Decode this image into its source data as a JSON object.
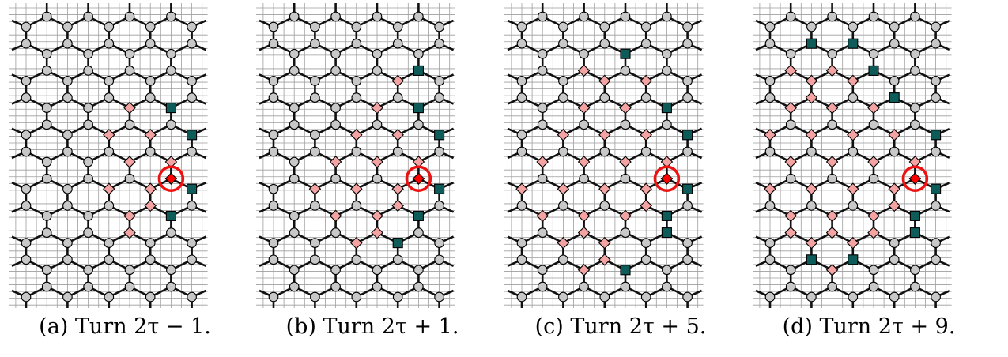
{
  "grid": {
    "cols": 8,
    "rows": 10
  },
  "colors": {
    "gridline": "#9e9e9e",
    "edge": "#111111",
    "vertex": "#c8c8c8",
    "marked": "#f4a3a3",
    "robber": "#ff0000",
    "cop": "#0d5c5a",
    "circle": "#ee1111"
  },
  "robber": {
    "i": 7,
    "j": 6
  },
  "panels": [
    {
      "caption": "(a) Turn 2τ − 1.",
      "cops": [
        [
          7,
          3
        ],
        [
          8,
          4
        ],
        [
          8,
          6
        ],
        [
          7,
          7
        ]
      ],
      "marked": [
        [
          5,
          3
        ],
        [
          4,
          4
        ],
        [
          6,
          4
        ],
        [
          5,
          5
        ],
        [
          7,
          5
        ],
        [
          4,
          6
        ],
        [
          6,
          6
        ],
        [
          5,
          7
        ],
        [
          6,
          7
        ],
        [
          5,
          8
        ]
      ]
    },
    {
      "caption": "(b) Turn 2τ + 1.",
      "cops": [
        [
          7,
          2
        ],
        [
          7,
          3
        ],
        [
          8,
          4
        ],
        [
          8,
          6
        ],
        [
          7,
          7
        ],
        [
          6,
          8
        ]
      ],
      "marked": [
        [
          6,
          2
        ],
        [
          5,
          3
        ],
        [
          4,
          4
        ],
        [
          6,
          4
        ],
        [
          3,
          5
        ],
        [
          5,
          5
        ],
        [
          7,
          5
        ],
        [
          2,
          6
        ],
        [
          4,
          6
        ],
        [
          6,
          6
        ],
        [
          3,
          7
        ],
        [
          5,
          7
        ],
        [
          4,
          8
        ],
        [
          5,
          8
        ],
        [
          6,
          7
        ]
      ]
    },
    {
      "caption": "(c) Turn 2τ + 5.",
      "cops": [
        [
          5,
          1
        ],
        [
          7,
          3
        ],
        [
          8,
          4
        ],
        [
          8,
          6
        ],
        [
          7,
          7
        ],
        [
          7,
          8
        ],
        [
          5,
          9
        ]
      ],
      "marked": [
        [
          4,
          2
        ],
        [
          6,
          2
        ],
        [
          3,
          2
        ],
        [
          3,
          3
        ],
        [
          5,
          3
        ],
        [
          2,
          4
        ],
        [
          4,
          4
        ],
        [
          6,
          4
        ],
        [
          1,
          5
        ],
        [
          3,
          5
        ],
        [
          5,
          5
        ],
        [
          7,
          5
        ],
        [
          0,
          6
        ],
        [
          2,
          6
        ],
        [
          4,
          6
        ],
        [
          6,
          6
        ],
        [
          1,
          7
        ],
        [
          3,
          7
        ],
        [
          5,
          7
        ],
        [
          2,
          8
        ],
        [
          4,
          8
        ],
        [
          6,
          7
        ],
        [
          3,
          8
        ],
        [
          3,
          9
        ],
        [
          4,
          9
        ]
      ]
    },
    {
      "caption": "(d) Turn 2τ + 9.",
      "cops": [
        [
          2,
          1
        ],
        [
          4,
          1
        ],
        [
          5,
          2
        ],
        [
          6,
          3
        ],
        [
          8,
          4
        ],
        [
          8,
          6
        ],
        [
          7,
          7
        ],
        [
          7,
          8
        ],
        [
          2,
          9
        ],
        [
          4,
          9
        ]
      ],
      "marked": [
        [
          2,
          2
        ],
        [
          4,
          2
        ],
        [
          1,
          2
        ],
        [
          1,
          3
        ],
        [
          3,
          3
        ],
        [
          5,
          3
        ],
        [
          0,
          4
        ],
        [
          2,
          4
        ],
        [
          4,
          4
        ],
        [
          6,
          4
        ],
        [
          1,
          5
        ],
        [
          3,
          5
        ],
        [
          5,
          5
        ],
        [
          7,
          5
        ],
        [
          0,
          6
        ],
        [
          2,
          6
        ],
        [
          4,
          6
        ],
        [
          6,
          6
        ],
        [
          1,
          7
        ],
        [
          3,
          7
        ],
        [
          5,
          7
        ],
        [
          2,
          8
        ],
        [
          4,
          8
        ],
        [
          6,
          7
        ],
        [
          1,
          8
        ],
        [
          3,
          8
        ],
        [
          5,
          8
        ],
        [
          3,
          9
        ],
        [
          2,
          3
        ],
        [
          3,
          2
        ]
      ]
    }
  ]
}
